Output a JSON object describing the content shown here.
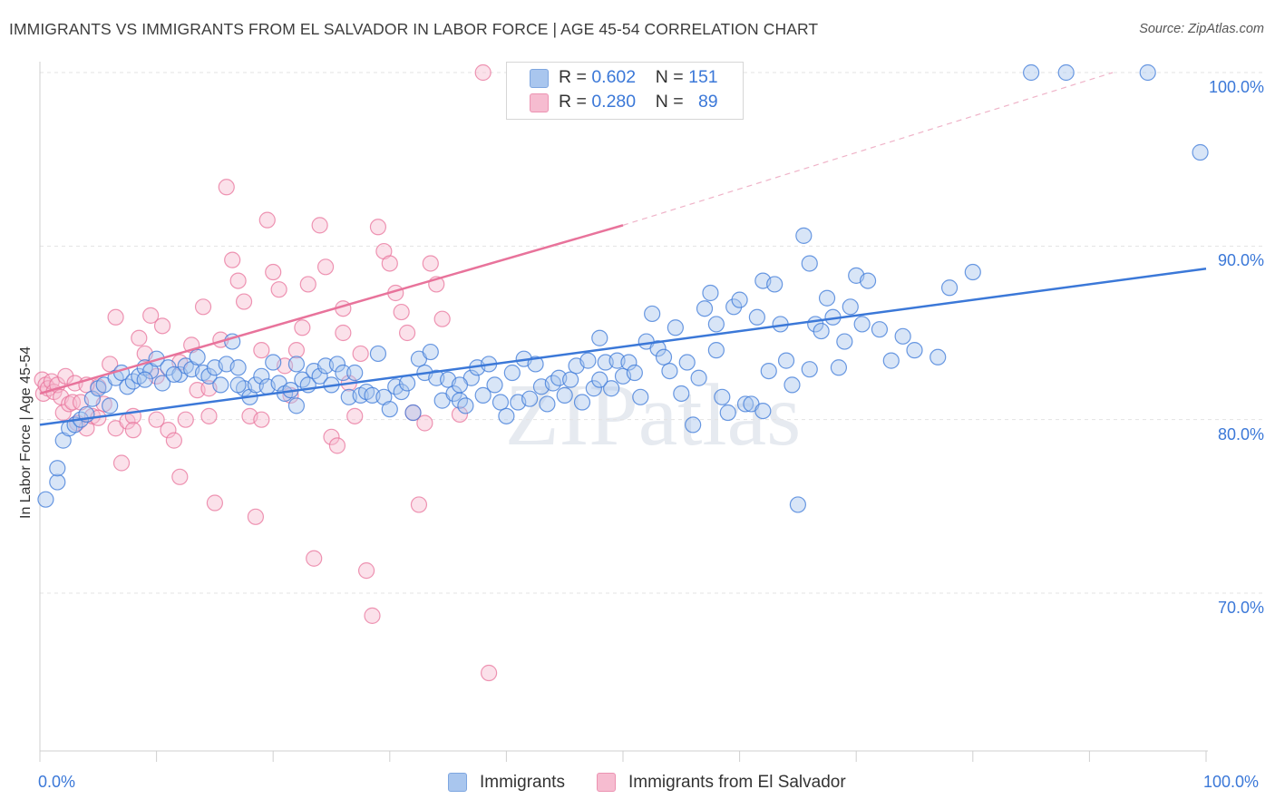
{
  "title": "IMMIGRANTS VS IMMIGRANTS FROM EL SALVADOR IN LABOR FORCE | AGE 45-54 CORRELATION CHART",
  "source": "Source: ZipAtlas.com",
  "watermark": "ZIPatlas",
  "colors": {
    "blue": "#3b78d8",
    "blue_fill": "#a9c6ee",
    "pink": "#e8739b",
    "pink_fill": "#f6bcd0",
    "grid": "#e3e3e3",
    "axis_text": "#3b78d8"
  },
  "legend": {
    "rows": [
      {
        "r_label": "R = ",
        "r_value": "0.602",
        "n_label": "N = ",
        "n_value": "151"
      },
      {
        "r_label": "R = ",
        "r_value": "0.280",
        "n_label": "N = ",
        "n_value": "89"
      }
    ]
  },
  "bottom_legend": [
    "Immigrants",
    "Immigrants from El Salvador"
  ],
  "chart_data": {
    "type": "scatter",
    "ylabel": "In Labor Force | Age 45-54",
    "xlim": [
      0,
      100
    ],
    "ylim": [
      60,
      102
    ],
    "x_tick_labels": [
      "0.0%",
      "100.0%"
    ],
    "y_ticks": [
      70,
      80,
      90,
      100
    ],
    "y_tick_labels": [
      "70.0%",
      "80.0%",
      "90.0%",
      "100.0%"
    ],
    "grid": true,
    "legend_position": "top-center",
    "series": [
      {
        "name": "Immigrants",
        "color": "#3b78d8",
        "R": 0.602,
        "N": 151,
        "trend": {
          "x": [
            0,
            100
          ],
          "y": [
            79.7,
            88.7
          ],
          "dashed_extension": false
        },
        "points": [
          [
            0.5,
            75.4
          ],
          [
            1.5,
            76.4
          ],
          [
            1.5,
            77.2
          ],
          [
            2,
            78.8
          ],
          [
            2.5,
            79.5
          ],
          [
            3,
            79.7
          ],
          [
            3.5,
            80.0
          ],
          [
            4,
            80.3
          ],
          [
            4.5,
            81.2
          ],
          [
            5,
            81.8
          ],
          [
            5.5,
            82.0
          ],
          [
            6,
            80.8
          ],
          [
            6.5,
            82.4
          ],
          [
            7,
            82.7
          ],
          [
            7.5,
            81.9
          ],
          [
            8,
            82.2
          ],
          [
            8.5,
            82.5
          ],
          [
            9,
            83.0
          ],
          [
            9.5,
            82.8
          ],
          [
            10,
            83.5
          ],
          [
            10.5,
            82.1
          ],
          [
            11,
            83.0
          ],
          [
            12,
            82.6
          ],
          [
            12.5,
            83.1
          ],
          [
            13,
            82.9
          ],
          [
            13.5,
            83.6
          ],
          [
            14,
            82.7
          ],
          [
            14.5,
            82.5
          ],
          [
            15,
            83.0
          ],
          [
            15.5,
            82.0
          ],
          [
            16,
            83.2
          ],
          [
            16.5,
            84.5
          ],
          [
            17,
            83.0
          ],
          [
            17.5,
            81.8
          ],
          [
            18,
            81.3
          ],
          [
            18.5,
            82.0
          ],
          [
            19,
            82.5
          ],
          [
            19.5,
            81.9
          ],
          [
            20,
            83.3
          ],
          [
            20.5,
            82.1
          ],
          [
            21,
            81.5
          ],
          [
            21.5,
            81.7
          ],
          [
            22,
            83.2
          ],
          [
            22.5,
            82.3
          ],
          [
            23,
            82.0
          ],
          [
            23.5,
            82.8
          ],
          [
            24,
            82.5
          ],
          [
            24.5,
            83.1
          ],
          [
            25,
            82.0
          ],
          [
            25.5,
            83.2
          ],
          [
            26,
            82.7
          ],
          [
            26.5,
            81.3
          ],
          [
            27,
            82.7
          ],
          [
            27.5,
            81.4
          ],
          [
            28,
            81.6
          ],
          [
            28.5,
            81.4
          ],
          [
            29,
            83.8
          ],
          [
            29.5,
            81.3
          ],
          [
            30,
            80.6
          ],
          [
            30.5,
            81.9
          ],
          [
            31,
            81.6
          ],
          [
            31.5,
            82.1
          ],
          [
            32,
            80.4
          ],
          [
            32.5,
            83.5
          ],
          [
            33,
            82.7
          ],
          [
            33.5,
            83.9
          ],
          [
            34,
            82.4
          ],
          [
            34.5,
            81.1
          ],
          [
            35,
            82.3
          ],
          [
            35.5,
            81.5
          ],
          [
            36,
            81.1
          ],
          [
            36.5,
            80.8
          ],
          [
            37,
            82.4
          ],
          [
            37.5,
            83.0
          ],
          [
            38,
            81.4
          ],
          [
            38.5,
            83.2
          ],
          [
            39,
            82.0
          ],
          [
            39.5,
            81.0
          ],
          [
            40,
            80.2
          ],
          [
            40.5,
            82.7
          ],
          [
            41,
            81.0
          ],
          [
            41.5,
            83.5
          ],
          [
            42,
            81.2
          ],
          [
            42.5,
            83.2
          ],
          [
            43,
            81.9
          ],
          [
            43.5,
            80.9
          ],
          [
            44,
            82.1
          ],
          [
            44.5,
            82.4
          ],
          [
            45,
            81.4
          ],
          [
            45.5,
            82.3
          ],
          [
            46,
            83.1
          ],
          [
            46.5,
            81.0
          ],
          [
            47,
            83.4
          ],
          [
            47.5,
            81.8
          ],
          [
            48,
            84.7
          ],
          [
            48.5,
            83.3
          ],
          [
            49,
            81.8
          ],
          [
            49.5,
            83.4
          ],
          [
            50,
            82.5
          ],
          [
            50.5,
            83.3
          ],
          [
            51,
            82.7
          ],
          [
            51.5,
            81.3
          ],
          [
            52,
            84.5
          ],
          [
            52.5,
            86.1
          ],
          [
            53,
            84.1
          ],
          [
            53.5,
            83.6
          ],
          [
            54,
            82.8
          ],
          [
            54.5,
            85.3
          ],
          [
            55,
            81.5
          ],
          [
            55.5,
            83.3
          ],
          [
            56,
            79.7
          ],
          [
            56.5,
            82.4
          ],
          [
            57,
            86.4
          ],
          [
            57.5,
            87.3
          ],
          [
            58,
            85.5
          ],
          [
            58.5,
            81.3
          ],
          [
            59,
            80.4
          ],
          [
            59.5,
            86.5
          ],
          [
            60,
            86.9
          ],
          [
            60.5,
            80.9
          ],
          [
            61,
            80.9
          ],
          [
            61.5,
            85.9
          ],
          [
            62,
            88.0
          ],
          [
            62.5,
            82.8
          ],
          [
            63,
            87.8
          ],
          [
            63.5,
            85.5
          ],
          [
            64,
            83.4
          ],
          [
            64.5,
            82.0
          ],
          [
            65,
            75.1
          ],
          [
            65.5,
            90.6
          ],
          [
            66,
            89.0
          ],
          [
            66.5,
            85.5
          ],
          [
            67,
            85.1
          ],
          [
            67.5,
            87.0
          ],
          [
            68,
            85.9
          ],
          [
            68.5,
            83.0
          ],
          [
            69,
            84.5
          ],
          [
            69.5,
            86.5
          ],
          [
            70,
            88.3
          ],
          [
            70.5,
            85.5
          ],
          [
            71,
            88.0
          ],
          [
            72,
            85.2
          ],
          [
            73,
            83.4
          ],
          [
            74,
            84.8
          ],
          [
            75,
            84.0
          ],
          [
            77,
            83.6
          ],
          [
            78,
            87.6
          ],
          [
            80,
            88.5
          ],
          [
            85,
            100.0
          ],
          [
            88,
            100.0
          ],
          [
            95,
            100.0
          ],
          [
            99.5,
            95.4
          ],
          [
            9,
            82.3
          ],
          [
            11.5,
            82.6
          ],
          [
            17,
            82.0
          ],
          [
            22,
            80.8
          ],
          [
            36,
            82.0
          ],
          [
            48,
            82.3
          ],
          [
            58,
            84.0
          ],
          [
            62,
            80.5
          ],
          [
            66,
            82.9
          ]
        ]
      },
      {
        "name": "Immigrants from El Salvador",
        "color": "#e8739b",
        "R": 0.28,
        "N": 89,
        "trend": {
          "x": [
            0,
            50
          ],
          "y": [
            81.5,
            91.2
          ],
          "dashed_extension_to": [
            92,
            100.0
          ]
        },
        "points": [
          [
            0.2,
            82.3
          ],
          [
            0.3,
            81.5
          ],
          [
            0.5,
            82.0
          ],
          [
            0.7,
            81.8
          ],
          [
            1,
            82.2
          ],
          [
            1.2,
            81.6
          ],
          [
            1.5,
            82.0
          ],
          [
            1.8,
            81.3
          ],
          [
            2,
            80.4
          ],
          [
            2.2,
            82.5
          ],
          [
            2.5,
            80.9
          ],
          [
            2.8,
            81.0
          ],
          [
            3,
            82.1
          ],
          [
            3.2,
            79.8
          ],
          [
            3.5,
            81.0
          ],
          [
            4,
            79.5
          ],
          [
            4.5,
            80.2
          ],
          [
            5,
            81.9
          ],
          [
            5.5,
            80.9
          ],
          [
            6,
            83.2
          ],
          [
            6.5,
            85.9
          ],
          [
            6.5,
            79.5
          ],
          [
            7,
            77.5
          ],
          [
            7.5,
            79.9
          ],
          [
            8,
            80.2
          ],
          [
            8.5,
            84.7
          ],
          [
            9,
            83.8
          ],
          [
            9.5,
            86.0
          ],
          [
            10,
            82.5
          ],
          [
            10.5,
            85.4
          ],
          [
            11,
            79.4
          ],
          [
            11.5,
            78.8
          ],
          [
            12,
            76.7
          ],
          [
            12.5,
            80.0
          ],
          [
            13,
            84.3
          ],
          [
            13.5,
            81.7
          ],
          [
            14,
            86.5
          ],
          [
            14.5,
            80.2
          ],
          [
            15,
            75.2
          ],
          [
            15.5,
            84.6
          ],
          [
            16,
            93.4
          ],
          [
            16.5,
            89.2
          ],
          [
            17,
            88.0
          ],
          [
            17.5,
            86.8
          ],
          [
            18,
            80.2
          ],
          [
            18.5,
            74.4
          ],
          [
            19,
            80.0
          ],
          [
            19.5,
            91.5
          ],
          [
            20,
            88.5
          ],
          [
            20.5,
            87.5
          ],
          [
            21,
            83.1
          ],
          [
            21.5,
            81.4
          ],
          [
            22,
            84.0
          ],
          [
            22.5,
            85.3
          ],
          [
            23,
            87.8
          ],
          [
            23.5,
            72.0
          ],
          [
            24,
            91.2
          ],
          [
            24.5,
            88.8
          ],
          [
            25,
            79.0
          ],
          [
            25.5,
            78.5
          ],
          [
            26,
            85.0
          ],
          [
            26.5,
            82.1
          ],
          [
            27,
            80.2
          ],
          [
            27.5,
            83.8
          ],
          [
            28,
            71.3
          ],
          [
            28.5,
            68.7
          ],
          [
            29,
            91.1
          ],
          [
            29.5,
            89.7
          ],
          [
            30,
            89.0
          ],
          [
            30.5,
            87.3
          ],
          [
            31,
            86.2
          ],
          [
            31.5,
            85.0
          ],
          [
            32,
            80.4
          ],
          [
            32.5,
            75.1
          ],
          [
            33,
            79.8
          ],
          [
            33.5,
            89.0
          ],
          [
            34,
            87.8
          ],
          [
            34.5,
            85.8
          ],
          [
            36,
            80.3
          ],
          [
            38,
            100.0
          ],
          [
            38.5,
            65.4
          ],
          [
            14.5,
            81.8
          ],
          [
            19,
            84.0
          ],
          [
            26,
            86.4
          ],
          [
            4,
            82.0
          ],
          [
            5,
            80.1
          ],
          [
            8,
            79.4
          ],
          [
            12,
            83.3
          ],
          [
            10,
            80.0
          ]
        ]
      }
    ]
  }
}
